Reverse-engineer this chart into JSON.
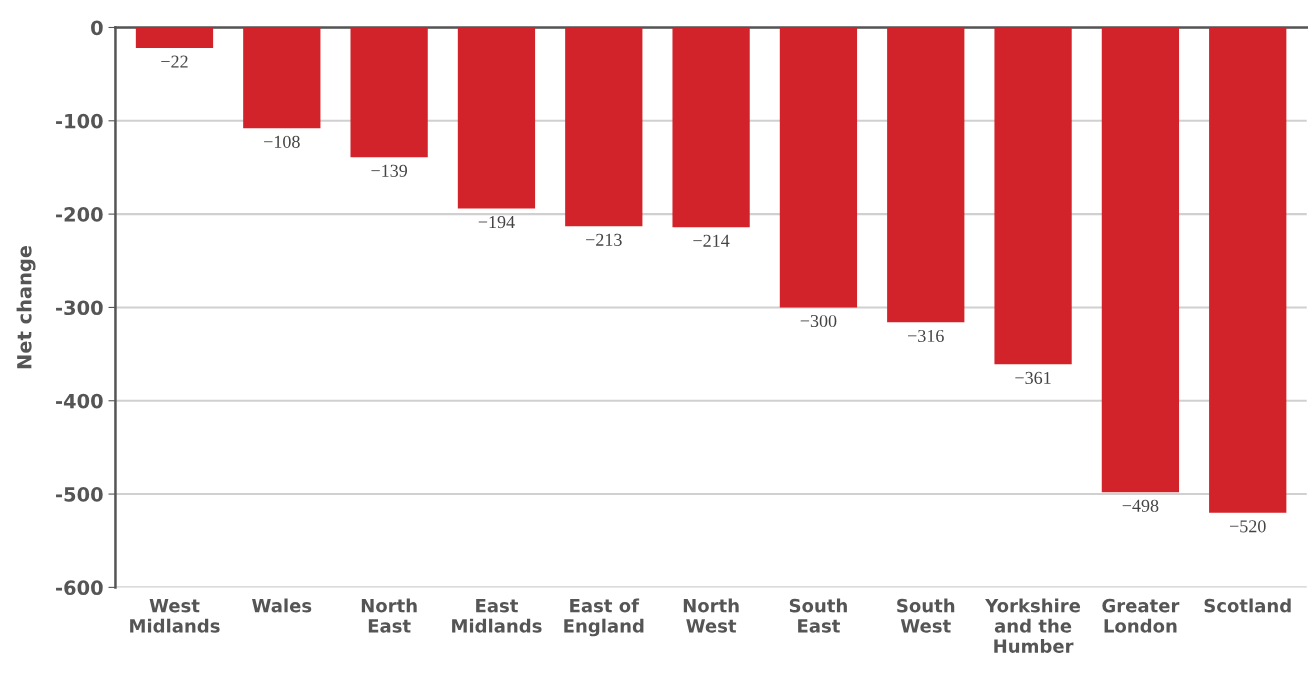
{
  "chart_data": {
    "type": "bar",
    "ylabel": "Net change",
    "categories": [
      "West\nMidlands",
      "Wales",
      "North\nEast",
      "East\nMidlands",
      "East of\nEngland",
      "North\nWest",
      "South\nEast",
      "South\nWest",
      "Yorkshire\nand the\nHumber",
      "Greater\nLondon",
      "Scotland"
    ],
    "values": [
      -22,
      -108,
      -139,
      -194,
      -213,
      -214,
      -300,
      -316,
      -361,
      -498,
      -520
    ],
    "color": "#d2232a",
    "ylim": [
      -600,
      0
    ],
    "yticks": [
      -600,
      -500,
      -400,
      -300,
      -200,
      -100,
      0
    ],
    "grid": "y",
    "data_labels": true
  }
}
